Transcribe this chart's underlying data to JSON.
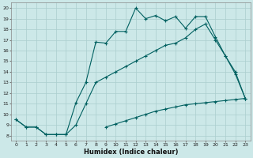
{
  "xlabel": "Humidex (Indice chaleur)",
  "bg_color": "#cce8e8",
  "line_color": "#006060",
  "grid_color": "#aacece",
  "xlim": [
    -0.5,
    23.5
  ],
  "ylim": [
    7.5,
    20.5
  ],
  "xticks": [
    0,
    1,
    2,
    3,
    4,
    5,
    6,
    7,
    8,
    9,
    10,
    11,
    12,
    13,
    14,
    15,
    16,
    17,
    18,
    19,
    20,
    21,
    22,
    23
  ],
  "yticks": [
    8,
    9,
    10,
    11,
    12,
    13,
    14,
    15,
    16,
    17,
    18,
    19,
    20
  ],
  "curve_upper_x": [
    0,
    1,
    2,
    3,
    4,
    5,
    6,
    7,
    8,
    9,
    10,
    11,
    12,
    13,
    14,
    15,
    16,
    17,
    18,
    19,
    20,
    21,
    22,
    23
  ],
  "curve_upper_y": [
    9.5,
    8.8,
    8.8,
    8.1,
    8.1,
    8.1,
    11.1,
    13.0,
    16.8,
    16.7,
    17.8,
    17.8,
    20.0,
    19.0,
    19.3,
    18.8,
    19.2,
    18.1,
    19.2,
    19.2,
    17.3,
    15.5,
    13.8,
    11.5
  ],
  "curve_middle_x": [
    0,
    1,
    2,
    3,
    4,
    5,
    6,
    7,
    8,
    9,
    10,
    11,
    12,
    13,
    14,
    15,
    16,
    17,
    18,
    19,
    20,
    21,
    22,
    23
  ],
  "curve_middle_y": [
    9.5,
    8.8,
    8.8,
    8.1,
    8.1,
    8.1,
    9.0,
    11.0,
    13.0,
    13.5,
    14.0,
    14.5,
    15.0,
    15.5,
    16.0,
    16.5,
    16.7,
    17.2,
    18.0,
    18.5,
    17.0,
    15.5,
    14.0,
    11.5
  ],
  "curve_lower_x": [
    0,
    1,
    2,
    3,
    4,
    5,
    6,
    7,
    8,
    9,
    10,
    11,
    12,
    13,
    14,
    15,
    16,
    17,
    18,
    19,
    20,
    21,
    22,
    23
  ],
  "curve_lower_y": [
    null,
    null,
    null,
    null,
    null,
    null,
    null,
    null,
    null,
    8.8,
    9.1,
    9.4,
    9.7,
    10.0,
    10.3,
    10.5,
    10.7,
    10.9,
    11.0,
    11.1,
    11.2,
    11.3,
    11.4,
    11.5
  ]
}
